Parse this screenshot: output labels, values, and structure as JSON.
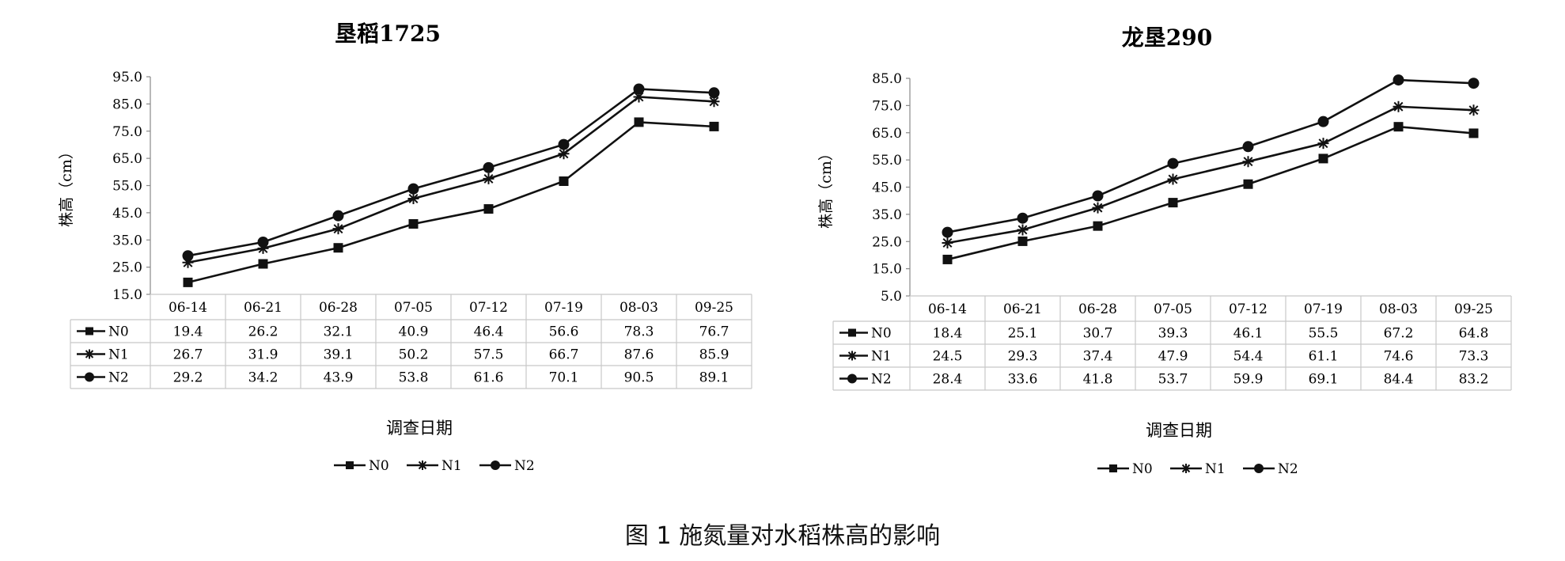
{
  "figure_caption": "图 1   施氮量对水稻株高的影响",
  "chart_data": [
    {
      "type": "line",
      "title": "垦稻1725",
      "xlabel": "调查日期",
      "ylabel": "株高（cm）",
      "categories": [
        "06-14",
        "06-21",
        "06-28",
        "07-05",
        "07-12",
        "07-19",
        "08-03",
        "09-25"
      ],
      "ylim": [
        15.0,
        95.0
      ],
      "yticks": [
        "95.0",
        "85.0",
        "75.0",
        "65.0",
        "55.0",
        "45.0",
        "35.0",
        "25.0",
        "15.0"
      ],
      "series": [
        {
          "name": "N0",
          "marker": "square",
          "values": [
            19.4,
            26.2,
            32.1,
            40.9,
            46.4,
            56.6,
            78.3,
            76.7
          ]
        },
        {
          "name": "N1",
          "marker": "star",
          "values": [
            26.7,
            31.9,
            39.1,
            50.2,
            57.5,
            66.7,
            87.6,
            85.9
          ]
        },
        {
          "name": "N2",
          "marker": "circle",
          "values": [
            29.2,
            34.2,
            43.9,
            53.8,
            61.6,
            70.1,
            90.5,
            89.1
          ]
        }
      ],
      "data_table": true,
      "legend": "bottom",
      "grid": false
    },
    {
      "type": "line",
      "title": "龙垦290",
      "xlabel": "调查日期",
      "ylabel": "株高（cm）",
      "categories": [
        "06-14",
        "06-21",
        "06-28",
        "07-05",
        "07-12",
        "07-19",
        "08-03",
        "09-25"
      ],
      "ylim": [
        5.0,
        85.0
      ],
      "yticks": [
        "85.0",
        "75.0",
        "65.0",
        "55.0",
        "45.0",
        "35.0",
        "25.0",
        "15.0",
        "5.0"
      ],
      "series": [
        {
          "name": "N0",
          "marker": "square",
          "values": [
            18.4,
            25.1,
            30.7,
            39.3,
            46.1,
            55.5,
            67.2,
            64.8
          ]
        },
        {
          "name": "N1",
          "marker": "star",
          "values": [
            24.5,
            29.3,
            37.4,
            47.9,
            54.4,
            61.1,
            74.6,
            73.3
          ]
        },
        {
          "name": "N2",
          "marker": "circle",
          "values": [
            28.4,
            33.6,
            41.8,
            53.7,
            59.9,
            69.1,
            84.4,
            83.2
          ]
        }
      ],
      "data_table": true,
      "legend": "bottom",
      "grid": false
    }
  ]
}
